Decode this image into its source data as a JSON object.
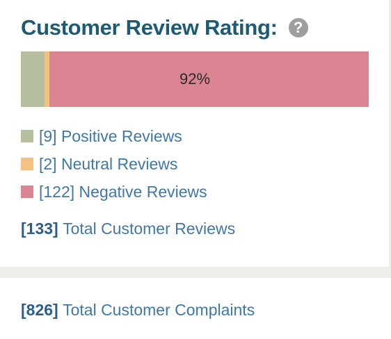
{
  "title": "Customer Review Rating:",
  "help_icon": "question-mark-icon",
  "rating_bar": {
    "segments": [
      {
        "name": "positive",
        "value": 9,
        "color": "#b5be9e"
      },
      {
        "name": "neutral",
        "value": 2,
        "color": "#f3c282"
      },
      {
        "name": "negative",
        "value": 122,
        "color": "#db8592"
      }
    ],
    "label": "92%"
  },
  "legend": [
    {
      "count": "[9]",
      "label": "Positive Reviews",
      "color": "#b5be9e"
    },
    {
      "count": "[2]",
      "label": "Neutral Reviews",
      "color": "#f3c282"
    },
    {
      "count": "[122]",
      "label": "Negative Reviews",
      "color": "#db8592"
    }
  ],
  "total_reviews": {
    "count": "[133]",
    "label": "Total Customer Reviews"
  },
  "total_complaints": {
    "count": "[826]",
    "label": "Total Customer Complaints"
  }
}
